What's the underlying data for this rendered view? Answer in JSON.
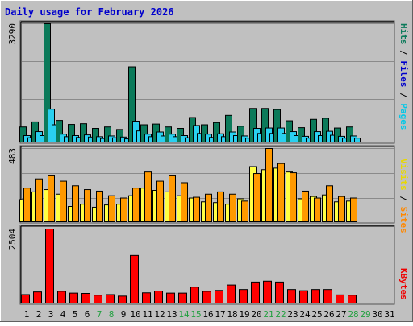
{
  "title": "Daily usage for February 2026",
  "colors": {
    "background": "#c0c0c0",
    "title_text": "#0000cc",
    "hits": "#0b7a5a",
    "files": "#2ad0f0",
    "pages": "#2ad0f0",
    "visits": "#ffff44",
    "sites": "#ff9900",
    "kbytes": "#ff0000",
    "weekend_day": "#22a040",
    "weekday": "#000000"
  },
  "chart_data": [
    {
      "type": "bar",
      "panel": "hits-files-pages",
      "y_max_label": "3290",
      "ylim": [
        0,
        3290
      ],
      "side_label": {
        "hits": "Hits",
        "files": "Files",
        "pages": "Pages",
        "sep": " / "
      },
      "categories": [
        "1",
        "2",
        "3",
        "4",
        "5",
        "6",
        "7",
        "8",
        "9",
        "10",
        "11",
        "12",
        "13",
        "14",
        "15",
        "16",
        "17",
        "18",
        "19",
        "20",
        "21",
        "22",
        "23",
        "24",
        "25",
        "26",
        "27",
        "28",
        "29",
        "30",
        "31"
      ],
      "series": [
        {
          "name": "Hits",
          "values": [
            440,
            580,
            3290,
            620,
            510,
            530,
            400,
            440,
            370,
            2100,
            500,
            520,
            440,
            400,
            700,
            500,
            560,
            760,
            460,
            950,
            950,
            920,
            610,
            420,
            650,
            680,
            410,
            440,
            null,
            null,
            null
          ]
        },
        {
          "name": "Files",
          "values": [
            200,
            310,
            930,
            240,
            200,
            220,
            170,
            190,
            160,
            600,
            240,
            300,
            240,
            200,
            480,
            240,
            250,
            300,
            190,
            400,
            410,
            410,
            310,
            180,
            310,
            320,
            180,
            190,
            null,
            null,
            null
          ]
        },
        {
          "name": "Pages",
          "values": [
            140,
            200,
            500,
            170,
            150,
            160,
            120,
            140,
            110,
            330,
            170,
            190,
            170,
            140,
            260,
            150,
            170,
            200,
            130,
            260,
            260,
            260,
            200,
            130,
            200,
            210,
            130,
            130,
            null,
            null,
            null
          ]
        }
      ]
    },
    {
      "type": "bar",
      "panel": "visits-sites",
      "y_max_label": "483",
      "ylim": [
        0,
        483
      ],
      "side_label": {
        "visits": "Visits",
        "sites": "Sites",
        "sep": " / "
      },
      "categories": [
        "1",
        "2",
        "3",
        "4",
        "5",
        "6",
        "7",
        "8",
        "9",
        "10",
        "11",
        "12",
        "13",
        "14",
        "15",
        "16",
        "17",
        "18",
        "19",
        "20",
        "21",
        "22",
        "23",
        "24",
        "25",
        "26",
        "27",
        "28",
        "29",
        "30",
        "31"
      ],
      "series": [
        {
          "name": "Visits",
          "values": [
            150,
            200,
            215,
            185,
            105,
            120,
            100,
            115,
            120,
            175,
            225,
            210,
            200,
            175,
            160,
            135,
            130,
            120,
            155,
            365,
            345,
            355,
            330,
            155,
            170,
            180,
            135,
            140,
            null,
            null,
            null
          ]
        },
        {
          "name": "Sites",
          "values": [
            225,
            285,
            305,
            270,
            240,
            215,
            205,
            175,
            160,
            225,
            330,
            270,
            305,
            260,
            165,
            185,
            200,
            185,
            140,
            320,
            483,
            385,
            325,
            205,
            160,
            240,
            170,
            160,
            null,
            null,
            null
          ]
        }
      ]
    },
    {
      "type": "bar",
      "panel": "kbytes",
      "y_max_label": "2504",
      "ylim": [
        0,
        2504
      ],
      "side_label": {
        "kbytes": "KBytes"
      },
      "categories": [
        "1",
        "2",
        "3",
        "4",
        "5",
        "6",
        "7",
        "8",
        "9",
        "10",
        "11",
        "12",
        "13",
        "14",
        "15",
        "16",
        "17",
        "18",
        "19",
        "20",
        "21",
        "22",
        "23",
        "24",
        "25",
        "26",
        "27",
        "28",
        "29",
        "30",
        "31"
      ],
      "series": [
        {
          "name": "KBytes",
          "values": [
            310,
            400,
            2504,
            420,
            360,
            350,
            290,
            310,
            260,
            1620,
            370,
            430,
            360,
            360,
            560,
            420,
            450,
            630,
            480,
            730,
            760,
            730,
            480,
            440,
            480,
            480,
            300,
            290,
            null,
            null,
            null
          ]
        }
      ]
    }
  ],
  "x_axis": {
    "days": [
      "1",
      "2",
      "3",
      "4",
      "5",
      "6",
      "7",
      "8",
      "9",
      "10",
      "11",
      "12",
      "13",
      "14",
      "15",
      "16",
      "17",
      "18",
      "19",
      "20",
      "21",
      "22",
      "23",
      "24",
      "25",
      "26",
      "27",
      "28",
      "29",
      "30",
      "31"
    ],
    "weekend": [
      false,
      false,
      false,
      false,
      false,
      false,
      true,
      true,
      false,
      false,
      false,
      false,
      false,
      true,
      true,
      false,
      false,
      false,
      false,
      false,
      true,
      true,
      false,
      false,
      false,
      false,
      false,
      true,
      true,
      false,
      false
    ]
  }
}
